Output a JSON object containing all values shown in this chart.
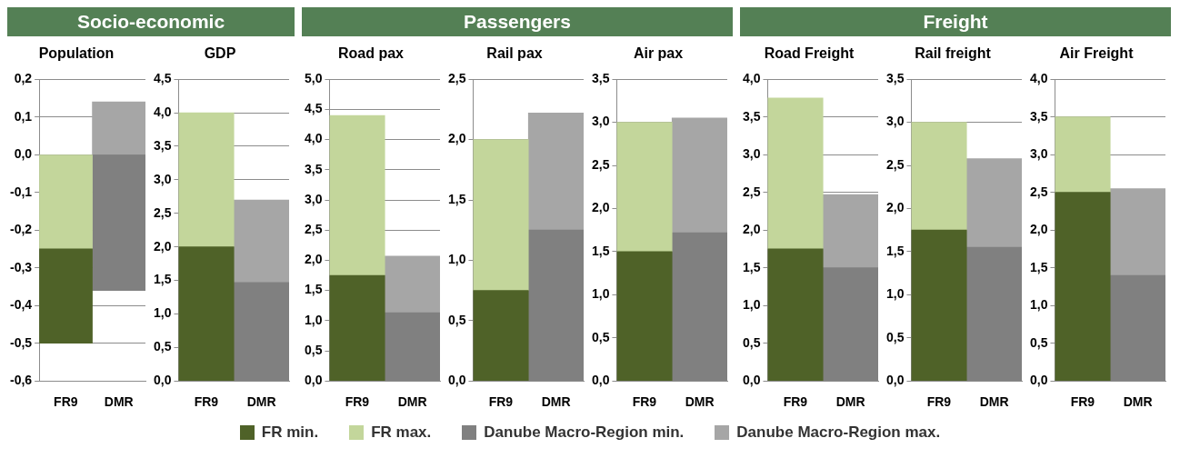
{
  "chart_data": [
    {
      "type": "other",
      "annotations": [
        "Socio-economic",
        "Passengers",
        "Freight"
      ]
    },
    {
      "type": "bar",
      "title": "Population",
      "categories": [
        "FR9",
        "DMR"
      ],
      "ylim": [
        -0.6,
        0.2
      ],
      "yticks": [
        {
          "value": -0.6,
          "label": "-0,6"
        },
        {
          "value": -0.5,
          "label": "-0,5"
        },
        {
          "value": -0.4,
          "label": "-0,4"
        },
        {
          "value": -0.3,
          "label": "-0,3"
        },
        {
          "value": -0.2,
          "label": "-0,2"
        },
        {
          "value": -0.1,
          "label": "-0,1"
        },
        {
          "value": 0,
          "label": "0,0"
        },
        {
          "value": 0.1,
          "label": "0,1"
        },
        {
          "value": 0.2,
          "label": "0,2"
        }
      ],
      "grid": "y",
      "legend": "bottom",
      "series": [
        {
          "name": "FR min.",
          "color": "#4f6228",
          "values": [
            -0.25,
            null
          ],
          "base": [
            -0.25,
            null
          ]
        },
        {
          "name": "FR max.",
          "color": "#c3d69b",
          "values": [
            -0.25,
            null
          ],
          "base": [
            0,
            null
          ]
        },
        {
          "name": "Danube Macro-Region min.",
          "color": "#808080",
          "values": [
            null,
            -0.36
          ],
          "base": [
            null,
            0
          ]
        },
        {
          "name": "Danube Macro-Region max.",
          "color": "#a6a6a6",
          "values": [
            null,
            0.14
          ],
          "base": [
            null,
            0
          ]
        }
      ]
    },
    {
      "type": "bar",
      "title": "GDP",
      "categories": [
        "FR9",
        "DMR"
      ],
      "ylim": [
        0,
        4.5
      ],
      "yticks": [
        {
          "value": 0,
          "label": "0,0"
        },
        {
          "value": 0.5,
          "label": "0,5"
        },
        {
          "value": 1,
          "label": "1,0"
        },
        {
          "value": 1.5,
          "label": "1,5"
        },
        {
          "value": 2,
          "label": "2,0"
        },
        {
          "value": 2.5,
          "label": "2,5"
        },
        {
          "value": 3,
          "label": "3,0"
        },
        {
          "value": 3.5,
          "label": "3,5"
        },
        {
          "value": 4,
          "label": "4,0"
        },
        {
          "value": 4.5,
          "label": "4,5"
        }
      ],
      "grid": "y",
      "series": [
        {
          "color": "#4f6228",
          "values": [
            2.0,
            null
          ],
          "base": [
            0,
            null
          ]
        },
        {
          "color": "#c3d69b",
          "values": [
            2.0,
            null
          ],
          "base": [
            2.0,
            null
          ]
        },
        {
          "color": "#808080",
          "values": [
            null,
            1.47
          ],
          "base": [
            null,
            0
          ]
        },
        {
          "color": "#a6a6a6",
          "values": [
            null,
            1.23
          ],
          "base": [
            null,
            1.47
          ]
        }
      ]
    },
    {
      "type": "bar",
      "title": "Road pax",
      "categories": [
        "FR9",
        "DMR"
      ],
      "ylim": [
        0,
        5
      ],
      "yticks": [
        {
          "value": 0,
          "label": "0,0"
        },
        {
          "value": 0.5,
          "label": "0,5"
        },
        {
          "value": 1,
          "label": "1,0"
        },
        {
          "value": 1.5,
          "label": "1,5"
        },
        {
          "value": 2,
          "label": "2,0"
        },
        {
          "value": 2.5,
          "label": "2,5"
        },
        {
          "value": 3,
          "label": "3,0"
        },
        {
          "value": 3.5,
          "label": "3,5"
        },
        {
          "value": 4,
          "label": "4,0"
        },
        {
          "value": 4.5,
          "label": "4,5"
        },
        {
          "value": 5,
          "label": "5,0"
        }
      ],
      "grid": "y",
      "series": [
        {
          "color": "#4f6228",
          "values": [
            1.75,
            null
          ],
          "base": [
            0,
            null
          ]
        },
        {
          "color": "#c3d69b",
          "values": [
            2.65,
            null
          ],
          "base": [
            1.75,
            null
          ]
        },
        {
          "color": "#808080",
          "values": [
            null,
            1.13
          ],
          "base": [
            null,
            0
          ]
        },
        {
          "color": "#a6a6a6",
          "values": [
            null,
            0.94
          ],
          "base": [
            null,
            1.13
          ]
        }
      ]
    },
    {
      "type": "bar",
      "title": "Rail pax",
      "categories": [
        "FR9",
        "DMR"
      ],
      "ylim": [
        0,
        2.5
      ],
      "yticks": [
        {
          "value": 0,
          "label": "0,0"
        },
        {
          "value": 0.5,
          "label": "0,5"
        },
        {
          "value": 1,
          "label": "1,0"
        },
        {
          "value": 1.5,
          "label": "1,5"
        },
        {
          "value": 2,
          "label": "2,0"
        },
        {
          "value": 2.5,
          "label": "2,5"
        }
      ],
      "grid": "y",
      "series": [
        {
          "color": "#4f6228",
          "values": [
            0.75,
            null
          ],
          "base": [
            0,
            null
          ]
        },
        {
          "color": "#c3d69b",
          "values": [
            1.25,
            null
          ],
          "base": [
            0.75,
            null
          ]
        },
        {
          "color": "#808080",
          "values": [
            null,
            1.25
          ],
          "base": [
            null,
            0
          ]
        },
        {
          "color": "#a6a6a6",
          "values": [
            null,
            0.97
          ],
          "base": [
            null,
            1.25
          ]
        }
      ]
    },
    {
      "type": "bar",
      "title": "Air pax",
      "categories": [
        "FR9",
        "DMR"
      ],
      "ylim": [
        0,
        3.5
      ],
      "yticks": [
        {
          "value": 0,
          "label": "0,0"
        },
        {
          "value": 0.5,
          "label": "0,5"
        },
        {
          "value": 1,
          "label": "1,0"
        },
        {
          "value": 1.5,
          "label": "1,5"
        },
        {
          "value": 2,
          "label": "2,0"
        },
        {
          "value": 2.5,
          "label": "2,5"
        },
        {
          "value": 3,
          "label": "3,0"
        },
        {
          "value": 3.5,
          "label": "3,5"
        }
      ],
      "grid": "y",
      "series": [
        {
          "color": "#4f6228",
          "values": [
            1.5,
            null
          ],
          "base": [
            0,
            null
          ]
        },
        {
          "color": "#c3d69b",
          "values": [
            1.5,
            null
          ],
          "base": [
            1.5,
            null
          ]
        },
        {
          "color": "#808080",
          "values": [
            null,
            1.72
          ],
          "base": [
            null,
            0
          ]
        },
        {
          "color": "#a6a6a6",
          "values": [
            null,
            1.33
          ],
          "base": [
            null,
            1.72
          ]
        }
      ]
    },
    {
      "type": "bar",
      "title": "Road Freight",
      "categories": [
        "FR9",
        "DMR"
      ],
      "ylim": [
        0,
        4
      ],
      "yticks": [
        {
          "value": 0,
          "label": "0,0"
        },
        {
          "value": 0.5,
          "label": "0,5"
        },
        {
          "value": 1,
          "label": "1,0"
        },
        {
          "value": 1.5,
          "label": "1,5"
        },
        {
          "value": 2,
          "label": "2,0"
        },
        {
          "value": 2.5,
          "label": "2,5"
        },
        {
          "value": 3,
          "label": "3,0"
        },
        {
          "value": 3.5,
          "label": "3,5"
        },
        {
          "value": 4,
          "label": "4,0"
        }
      ],
      "grid": "y",
      "series": [
        {
          "color": "#4f6228",
          "values": [
            1.75,
            null
          ],
          "base": [
            0,
            null
          ]
        },
        {
          "color": "#c3d69b",
          "values": [
            2.0,
            null
          ],
          "base": [
            1.75,
            null
          ]
        },
        {
          "color": "#808080",
          "values": [
            null,
            1.5
          ],
          "base": [
            null,
            0
          ]
        },
        {
          "color": "#a6a6a6",
          "values": [
            null,
            0.97
          ],
          "base": [
            null,
            1.5
          ]
        }
      ]
    },
    {
      "type": "bar",
      "title": "Rail freight",
      "categories": [
        "FR9",
        "DMR"
      ],
      "ylim": [
        0,
        3.5
      ],
      "yticks": [
        {
          "value": 0,
          "label": "0,0"
        },
        {
          "value": 0.5,
          "label": "0,5"
        },
        {
          "value": 1,
          "label": "1,0"
        },
        {
          "value": 1.5,
          "label": "1,5"
        },
        {
          "value": 2,
          "label": "2,0"
        },
        {
          "value": 2.5,
          "label": "2,5"
        },
        {
          "value": 3,
          "label": "3,0"
        },
        {
          "value": 3.5,
          "label": "3,5"
        }
      ],
      "grid": "y",
      "series": [
        {
          "color": "#4f6228",
          "values": [
            1.75,
            null
          ],
          "base": [
            0,
            null
          ]
        },
        {
          "color": "#c3d69b",
          "values": [
            1.25,
            null
          ],
          "base": [
            1.75,
            null
          ]
        },
        {
          "color": "#808080",
          "values": [
            null,
            1.55
          ],
          "base": [
            null,
            0
          ]
        },
        {
          "color": "#a6a6a6",
          "values": [
            null,
            1.03
          ],
          "base": [
            null,
            1.55
          ]
        }
      ]
    },
    {
      "type": "bar",
      "title": "Air Freight",
      "categories": [
        "FR9",
        "DMR"
      ],
      "ylim": [
        0,
        4
      ],
      "yticks": [
        {
          "value": 0,
          "label": "0,0"
        },
        {
          "value": 0.5,
          "label": "0,5"
        },
        {
          "value": 1,
          "label": "1,0"
        },
        {
          "value": 1.5,
          "label": "1,5"
        },
        {
          "value": 2,
          "label": "2,0"
        },
        {
          "value": 2.5,
          "label": "2,5"
        },
        {
          "value": 3,
          "label": "3,0"
        },
        {
          "value": 3.5,
          "label": "3,5"
        },
        {
          "value": 4,
          "label": "4,0"
        }
      ],
      "grid": "y",
      "series": [
        {
          "color": "#4f6228",
          "values": [
            2.5,
            null
          ],
          "base": [
            0,
            null
          ]
        },
        {
          "color": "#c3d69b",
          "values": [
            1.0,
            null
          ],
          "base": [
            2.5,
            null
          ]
        },
        {
          "color": "#808080",
          "values": [
            null,
            1.4
          ],
          "base": [
            null,
            0
          ]
        },
        {
          "color": "#a6a6a6",
          "values": [
            null,
            1.15
          ],
          "base": [
            null,
            1.4
          ]
        }
      ]
    }
  ]
}
